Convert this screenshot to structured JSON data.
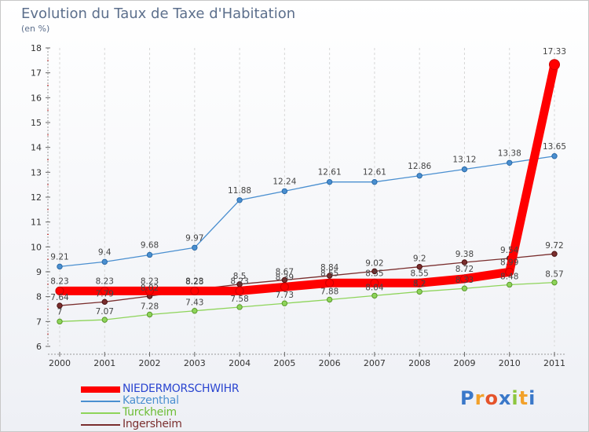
{
  "title": "Evolution du Taux de Taxe d'Habitation",
  "subtitle": "(en %)",
  "logo": {
    "letters": [
      "P",
      "r",
      "o",
      "x",
      "i",
      "t",
      "i"
    ],
    "colors": [
      "#3a78c9",
      "#f2a12a",
      "#e5532a",
      "#3a78c9",
      "#8dc63f",
      "#f2a12a",
      "#3a78c9"
    ]
  },
  "chart_data": {
    "type": "line",
    "categories": [
      "2000",
      "2001",
      "2002",
      "2003",
      "2004",
      "2005",
      "2006",
      "2007",
      "2008",
      "2009",
      "2010",
      "2011"
    ],
    "ylim": [
      6,
      18
    ],
    "yticks": [
      6,
      7,
      8,
      9,
      10,
      11,
      12,
      13,
      14,
      15,
      16,
      17,
      18
    ],
    "grid": "vertical dashed",
    "legend": "bottom-left",
    "series": [
      {
        "name": "NIEDERMORSCHWIHR",
        "color": "#ff0000",
        "legend_text_color": "#2a45d0",
        "thick": true,
        "values": [
          8.23,
          8.23,
          8.23,
          8.23,
          8.23,
          8.39,
          8.55,
          8.55,
          8.55,
          8.72,
          8.99,
          17.33
        ],
        "labels": [
          "8.23",
          "8.23",
          "8.23",
          "8.23",
          "8.23",
          "8.39",
          "8.55",
          "8.55",
          "8.55",
          "8.72",
          "8.99",
          "17.33"
        ]
      },
      {
        "name": "Katzenthal",
        "color": "#4a8fd0",
        "legend_text_color": "#4a8fd0",
        "values": [
          9.21,
          9.4,
          9.68,
          9.97,
          11.88,
          12.24,
          12.61,
          12.61,
          12.86,
          13.12,
          13.38,
          13.65
        ],
        "labels": [
          "9.21",
          "9.4",
          "9.68",
          "9.97",
          "11.88",
          "12.24",
          "12.61",
          "12.61",
          "12.86",
          "13.12",
          "13.38",
          "13.65"
        ]
      },
      {
        "name": "Turckheim",
        "color": "#8ed45a",
        "legend_text_color": "#6dbd35",
        "values": [
          7.0,
          7.07,
          7.28,
          7.43,
          7.58,
          7.73,
          7.88,
          8.04,
          8.2,
          8.33,
          8.48,
          8.57
        ],
        "labels": [
          "7",
          "7.07",
          "7.28",
          "7.43",
          "7.58",
          "7.73",
          "7.88",
          "8.04",
          "8.2",
          "8.33",
          "8.48",
          "8.57"
        ]
      },
      {
        "name": "Ingersheim",
        "color": "#7a2e2e",
        "legend_text_color": "#7a2e2e",
        "values": [
          7.64,
          7.79,
          8.02,
          8.28,
          8.5,
          8.67,
          8.84,
          9.02,
          9.2,
          9.38,
          9.54,
          9.72
        ],
        "labels": [
          "7.64",
          "7.79",
          "8.02",
          "8.28",
          "8.5",
          "8.67",
          "8.84",
          "9.02",
          "9.2",
          "9.38",
          "9.54",
          "9.72"
        ]
      }
    ]
  }
}
